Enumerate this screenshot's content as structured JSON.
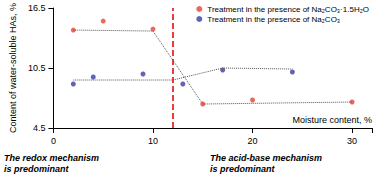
{
  "chart_data": {
    "type": "scatter",
    "x_label": "Moisture content, %",
    "y_label": "Content of water-soluble HAs, %",
    "xlim": [
      0,
      32
    ],
    "xticks": [
      0,
      10,
      20,
      30
    ],
    "ylim": [
      4.5,
      16.5
    ],
    "yticks": [
      4.5,
      10.5,
      16.5
    ],
    "grid": false,
    "legend": "upper right",
    "series": [
      {
        "name": "Treatment in the presence of Na₂CO₃·1.5H₂O",
        "type": "scatter",
        "marker": "circle",
        "color": "#e8413a",
        "x": [
          2,
          5,
          10,
          15,
          20,
          30
        ],
        "values": [
          14.3,
          15.2,
          14.4,
          6.9,
          7.3,
          7.1
        ]
      },
      {
        "name": "Treatment in the presence of Na₂CO₃",
        "type": "scatter",
        "marker": "circle",
        "color": "#3b3ba6",
        "x": [
          2,
          4,
          9,
          13,
          17,
          24
        ],
        "values": [
          8.9,
          9.6,
          9.9,
          8.9,
          10.3,
          10.1
        ]
      },
      {
        "type": "line",
        "line_style": "dotted",
        "color": "#555555",
        "x": [
          2,
          10,
          15,
          30
        ],
        "values": [
          14.3,
          14.2,
          6.9,
          7.1
        ]
      },
      {
        "type": "line",
        "line_style": "dotted",
        "color": "#555555",
        "x": [
          2,
          12,
          17,
          24
        ],
        "values": [
          9.3,
          9.3,
          10.5,
          10.4
        ]
      }
    ],
    "reference_lines": [
      {
        "x": 12,
        "color": "#e00000",
        "line_style": "dashed"
      }
    ],
    "annotations": [
      {
        "text": "The redox mechanism\nis predominant",
        "position": "bottom left"
      },
      {
        "text": "The acid-base mechanism\nis predominant",
        "position": "bottom right"
      }
    ]
  }
}
